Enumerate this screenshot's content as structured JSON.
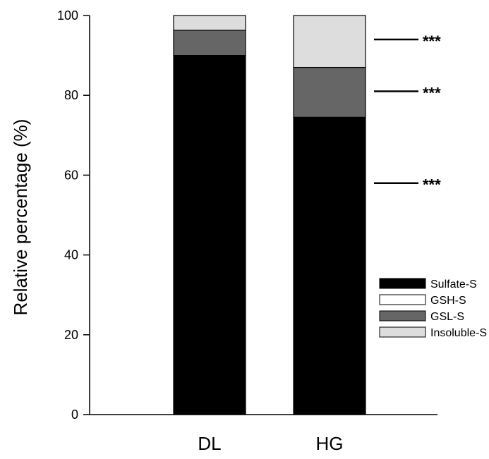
{
  "chart_data": {
    "type": "bar",
    "stacked": true,
    "ylabel": "Relative percentage (%)",
    "ylim": [
      0,
      100
    ],
    "yticks": [
      0,
      20,
      40,
      60,
      80,
      100
    ],
    "categories": [
      "DL",
      "HG"
    ],
    "series": [
      {
        "name": "Sulfate-S",
        "values": [
          90,
          74.5
        ],
        "color": "#000000"
      },
      {
        "name": "GSH-S",
        "values": [
          0,
          0
        ],
        "color": "#ffffff"
      },
      {
        "name": "GSL-S",
        "values": [
          6.3,
          12.5
        ],
        "color": "#666666"
      },
      {
        "name": "Insoluble-S",
        "values": [
          3.7,
          13
        ],
        "color": "#dddddd"
      }
    ],
    "legend_position": "lower-right",
    "significance": [
      {
        "label": "***",
        "level": 94
      },
      {
        "label": "***",
        "level": 81
      },
      {
        "label": "***",
        "level": 58
      }
    ]
  }
}
